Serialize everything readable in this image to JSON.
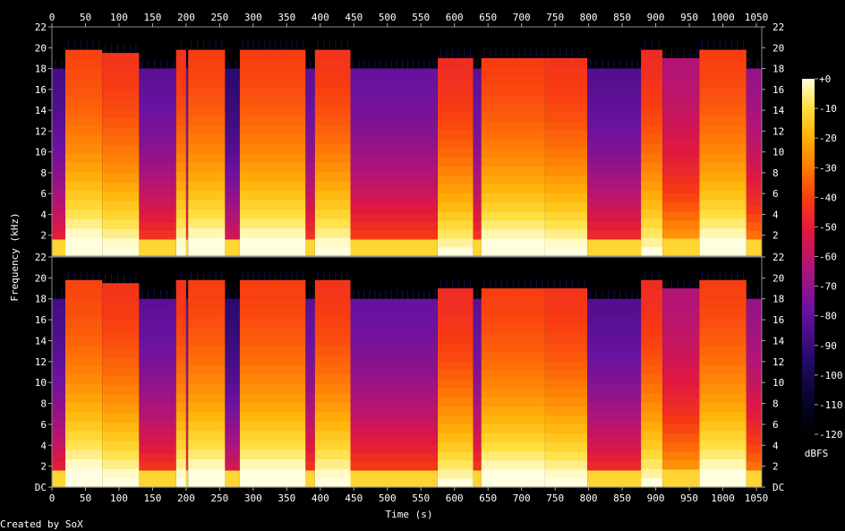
{
  "chart_data": {
    "type": "heatmap",
    "title": "",
    "xlabel": "Time (s)",
    "ylabel": "Frequency (kHz)",
    "xlim": [
      0,
      1058
    ],
    "ylim_khz": [
      0,
      22
    ],
    "x_ticks": [
      0,
      50,
      100,
      150,
      200,
      250,
      300,
      350,
      400,
      450,
      500,
      550,
      600,
      650,
      700,
      750,
      800,
      850,
      900,
      950,
      1000,
      1050
    ],
    "y_ticks_top": [
      "2",
      "4",
      "6",
      "8",
      "10",
      "12",
      "14",
      "16",
      "18",
      "20",
      "22"
    ],
    "y_ticks_bottom": [
      "DC",
      "2",
      "4",
      "6",
      "8",
      "10",
      "12",
      "14",
      "16",
      "18",
      "20",
      "22"
    ],
    "colorbar": {
      "label": "dBFS",
      "ticks": [
        "+0",
        "-10",
        "-20",
        "-30",
        "-40",
        "-50",
        "-60",
        "-70",
        "-80",
        "-90",
        "-100",
        "-110",
        "-120"
      ],
      "range": [
        -120,
        0
      ]
    },
    "channels": 2,
    "segments": [
      {
        "start": 0,
        "end": 20,
        "cutoff_khz": 18,
        "intensity": 0.35
      },
      {
        "start": 20,
        "end": 75,
        "cutoff_khz": 19.8,
        "intensity": 0.75
      },
      {
        "start": 75,
        "end": 130,
        "cutoff_khz": 19.5,
        "intensity": 0.72
      },
      {
        "start": 130,
        "end": 185,
        "cutoff_khz": 18,
        "intensity": 0.4
      },
      {
        "start": 185,
        "end": 200,
        "cutoff_khz": 19.8,
        "intensity": 0.72
      },
      {
        "start": 200,
        "end": 203,
        "cutoff_khz": 18,
        "intensity": 0.4
      },
      {
        "start": 203,
        "end": 258,
        "cutoff_khz": 19.8,
        "intensity": 0.74
      },
      {
        "start": 258,
        "end": 280,
        "cutoff_khz": 18,
        "intensity": 0.3
      },
      {
        "start": 280,
        "end": 378,
        "cutoff_khz": 19.8,
        "intensity": 0.74
      },
      {
        "start": 378,
        "end": 392,
        "cutoff_khz": 18,
        "intensity": 0.4
      },
      {
        "start": 392,
        "end": 445,
        "cutoff_khz": 19.8,
        "intensity": 0.72
      },
      {
        "start": 445,
        "end": 575,
        "cutoff_khz": 18,
        "intensity": 0.42
      },
      {
        "start": 575,
        "end": 628,
        "cutoff_khz": 19,
        "intensity": 0.7
      },
      {
        "start": 628,
        "end": 640,
        "cutoff_khz": 18,
        "intensity": 0.4
      },
      {
        "start": 640,
        "end": 735,
        "cutoff_khz": 19,
        "intensity": 0.74
      },
      {
        "start": 735,
        "end": 798,
        "cutoff_khz": 19,
        "intensity": 0.72
      },
      {
        "start": 798,
        "end": 878,
        "cutoff_khz": 18,
        "intensity": 0.38
      },
      {
        "start": 878,
        "end": 910,
        "cutoff_khz": 19.8,
        "intensity": 0.7
      },
      {
        "start": 910,
        "end": 965,
        "cutoff_khz": 19,
        "intensity": 0.55
      },
      {
        "start": 965,
        "end": 1035,
        "cutoff_khz": 19.8,
        "intensity": 0.74
      },
      {
        "start": 1035,
        "end": 1058,
        "cutoff_khz": 18,
        "intensity": 0.5
      }
    ]
  },
  "footer": {
    "credit": "Created by SoX"
  }
}
